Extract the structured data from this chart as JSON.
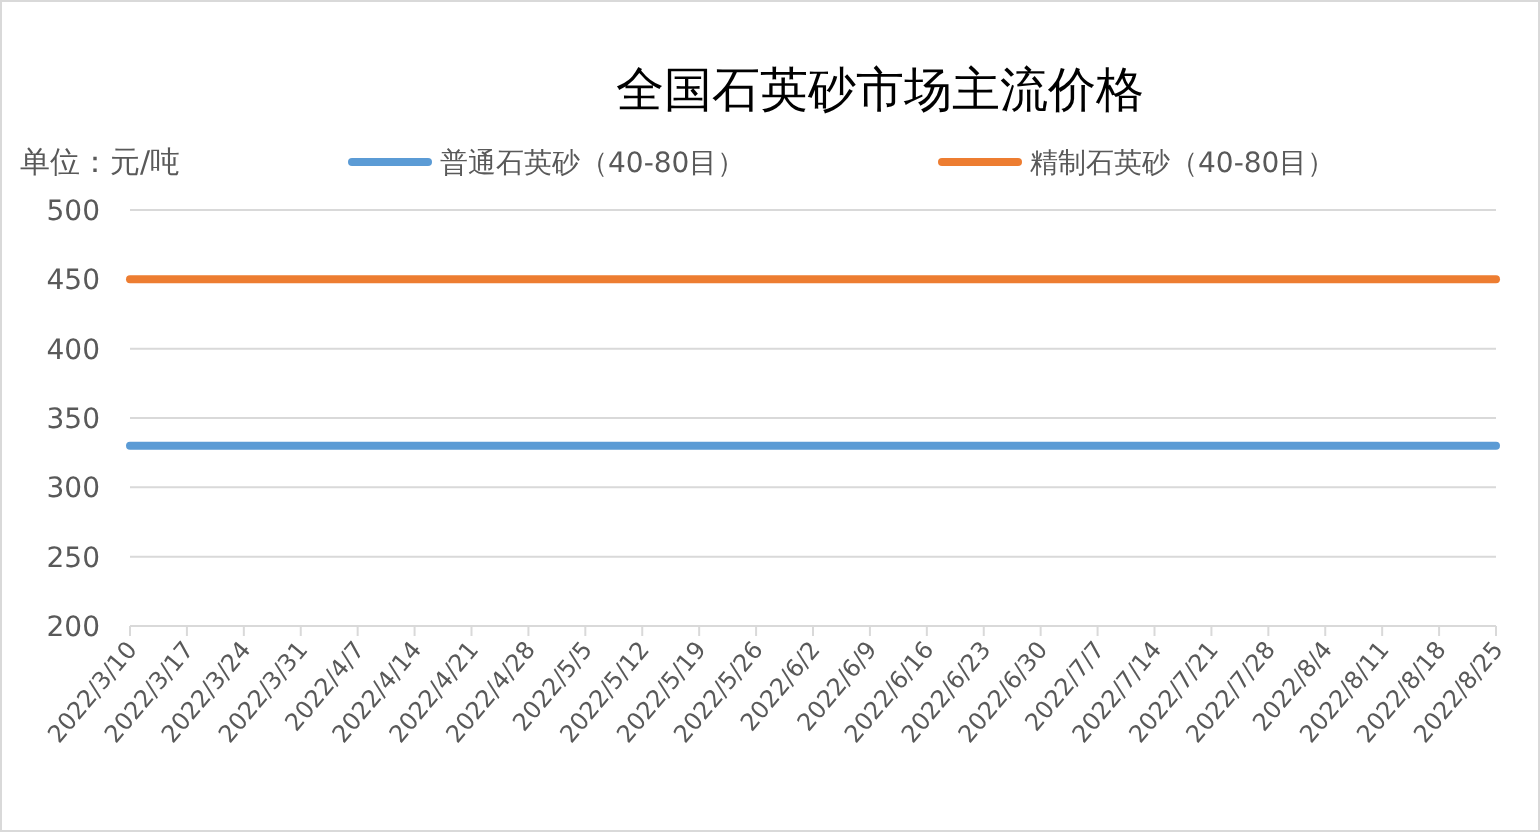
{
  "chart_data": {
    "type": "line",
    "title": "全国石英砂市场主流价格",
    "ylabel": "单位：元/吨",
    "categories": [
      "2022/3/10",
      "2022/3/17",
      "2022/3/24",
      "2022/3/31",
      "2022/4/7",
      "2022/4/14",
      "2022/4/21",
      "2022/4/28",
      "2022/5/5",
      "2022/5/12",
      "2022/5/19",
      "2022/5/26",
      "2022/6/2",
      "2022/6/9",
      "2022/6/16",
      "2022/6/23",
      "2022/6/30",
      "2022/7/7",
      "2022/7/14",
      "2022/7/21",
      "2022/7/28",
      "2022/8/4",
      "2022/8/11",
      "2022/8/18",
      "2022/8/25"
    ],
    "series": [
      {
        "name": "普通石英砂（40-80目）",
        "color": "#5b9bd5",
        "values": [
          330,
          330,
          330,
          330,
          330,
          330,
          330,
          330,
          330,
          330,
          330,
          330,
          330,
          330,
          330,
          330,
          330,
          330,
          330,
          330,
          330,
          330,
          330,
          330,
          330
        ]
      },
      {
        "name": "精制石英砂（40-80目）",
        "color": "#ed7d31",
        "values": [
          450,
          450,
          450,
          450,
          450,
          450,
          450,
          450,
          450,
          450,
          450,
          450,
          450,
          450,
          450,
          450,
          450,
          450,
          450,
          450,
          450,
          450,
          450,
          450,
          450
        ]
      }
    ],
    "ylim": [
      200,
      500
    ],
    "yticks": [
      200,
      250,
      300,
      350,
      400,
      450,
      500
    ],
    "grid": "y",
    "legend": "top",
    "marker": "none",
    "line_style": "solid"
  }
}
